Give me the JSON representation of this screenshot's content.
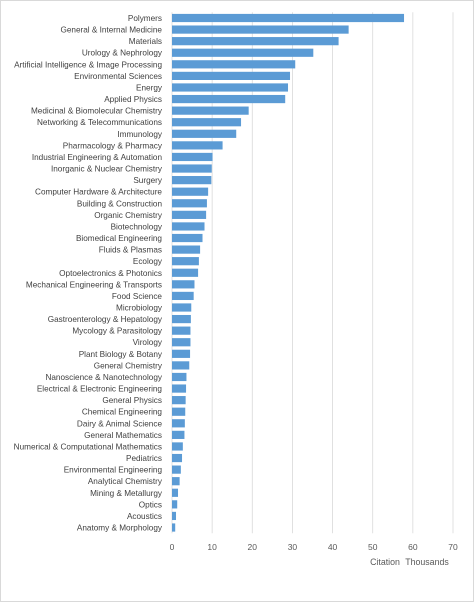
{
  "chart_data": {
    "type": "bar",
    "orientation": "horizontal",
    "categories": [
      "Polymers",
      "General & Internal Medicine",
      "Materials",
      "Urology & Nephrology",
      "Artificial Intelligence & Image Processing",
      "Environmental Sciences",
      "Energy",
      "Applied Physics",
      "Medicinal & Biomolecular Chemistry",
      "Networking & Telecommunications",
      "Immunology",
      "Pharmacology & Pharmacy",
      "Industrial Engineering & Automation",
      "Inorganic & Nuclear Chemistry",
      "Surgery",
      "Computer Hardware & Architecture",
      "Building & Construction",
      "Organic Chemistry",
      "Biotechnology",
      "Biomedical Engineering",
      "Fluids & Plasmas",
      "Ecology",
      "Optoelectronics & Photonics",
      "Mechanical Engineering & Transports",
      "Food Science",
      "Microbiology",
      "Gastroenterology & Hepatology",
      "Mycology & Parasitology",
      "Virology",
      "Plant Biology & Botany",
      "General Chemistry",
      "Nanoscience & Nanotechnology",
      "Electrical & Electronic Engineering",
      "General Physics",
      "Chemical Engineering",
      "Dairy & Animal Science",
      "General Mathematics",
      "Numerical & Computational Mathematics",
      "Pediatrics",
      "Environmental Engineering",
      "Analytical Chemistry",
      "Mining & Metallurgy",
      "Optics",
      "Acoustics",
      "Anatomy & Morphology"
    ],
    "values": [
      57.8,
      44.0,
      41.5,
      35.2,
      30.7,
      29.4,
      28.9,
      28.2,
      19.1,
      17.2,
      16.0,
      12.6,
      10.1,
      9.9,
      9.8,
      9.0,
      8.7,
      8.5,
      8.1,
      7.6,
      7.0,
      6.7,
      6.5,
      5.6,
      5.4,
      4.8,
      4.7,
      4.6,
      4.6,
      4.5,
      4.3,
      3.6,
      3.5,
      3.4,
      3.3,
      3.2,
      3.1,
      2.7,
      2.5,
      2.2,
      1.9,
      1.5,
      1.3,
      1.0,
      0.8
    ],
    "xlim": [
      0,
      70
    ],
    "x_ticks": [
      "0",
      "10",
      "20",
      "30",
      "40",
      "50",
      "60",
      "70"
    ],
    "xlabel": "Citation",
    "x_unit_label": "Thousands",
    "title": "",
    "grid": "vertical",
    "legend": "none",
    "bar_color": "#5b9bd5",
    "gridline_color": "#d9d9d9"
  }
}
